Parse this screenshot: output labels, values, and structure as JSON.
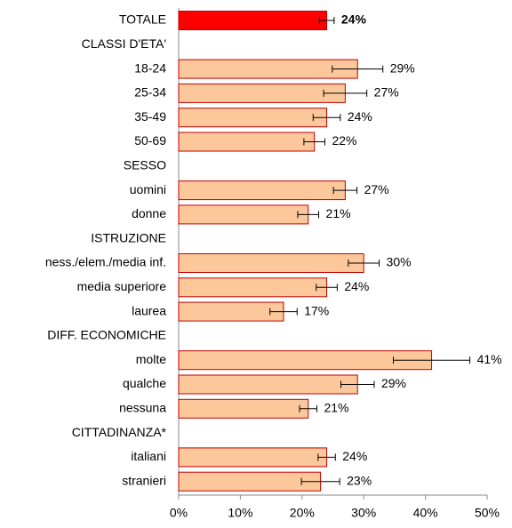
{
  "chart_data": {
    "type": "bar",
    "orientation": "horizontal",
    "categories": [
      "TOTALE",
      "CLASSI D'ETA'",
      "18-24",
      "25-34",
      "35-49",
      "50-69",
      "SESSO",
      "uomini",
      "donne",
      "ISTRUZIONE",
      "ness./elem./media inf.",
      "media superiore",
      "laurea",
      "DIFF. ECONOMICHE",
      "molte",
      "qualche",
      "nessuna",
      "CITTADINANZA*",
      "italiani",
      "stranieri"
    ],
    "values": [
      24,
      null,
      29,
      27,
      24,
      22,
      null,
      27,
      21,
      null,
      30,
      24,
      17,
      null,
      41,
      29,
      21,
      null,
      24,
      23
    ],
    "value_labels": [
      "24%",
      null,
      "29%",
      "27%",
      "24%",
      "22%",
      null,
      "27%",
      "21%",
      null,
      "30%",
      "24%",
      "17%",
      null,
      "41%",
      "29%",
      "21%",
      null,
      "24%",
      "23%"
    ],
    "errors": [
      1.2,
      null,
      4.1,
      3.5,
      2.2,
      1.7,
      null,
      1.9,
      1.7,
      null,
      2.5,
      1.7,
      2.2,
      null,
      6.2,
      2.7,
      1.4,
      null,
      1.4,
      3.1
    ],
    "bar_colors": [
      "#ff0000",
      null,
      "#fcc89b",
      "#fcc89b",
      "#fcc89b",
      "#fcc89b",
      null,
      "#fcc89b",
      "#fcc89b",
      null,
      "#fcc89b",
      "#fcc89b",
      "#fcc89b",
      null,
      "#fcc89b",
      "#fcc89b",
      "#fcc89b",
      null,
      "#fcc89b",
      "#fcc89b"
    ],
    "edge_color": "#c00000",
    "xlim": [
      0,
      50
    ],
    "xticks": [
      {
        "value": 0,
        "label": "0%"
      },
      {
        "value": 10,
        "label": "10%"
      },
      {
        "value": 20,
        "label": "20%"
      },
      {
        "value": 30,
        "label": "30%"
      },
      {
        "value": 40,
        "label": "40%"
      },
      {
        "value": 50,
        "label": "50%"
      }
    ]
  }
}
